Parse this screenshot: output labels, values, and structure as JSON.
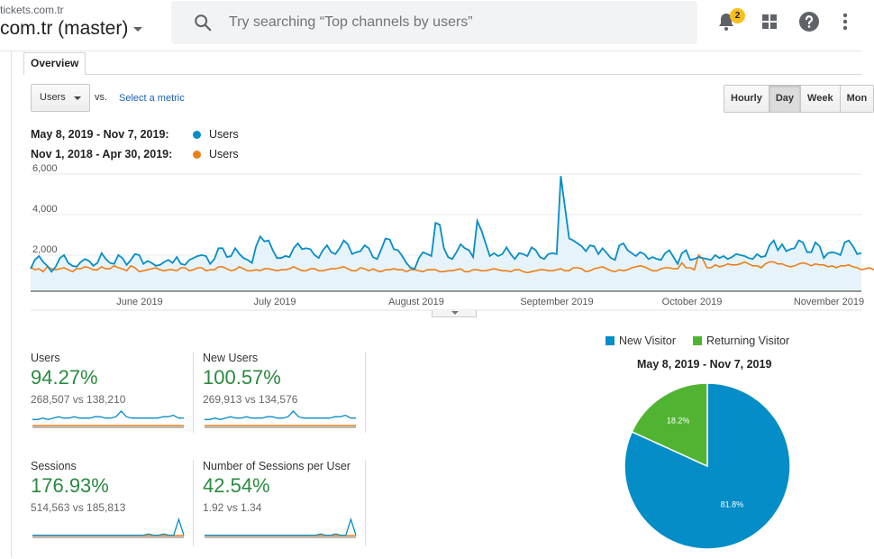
{
  "header": {
    "site_url": "tickets.com.tr",
    "property_name": "com.tr (master)",
    "search_placeholder": "Try searching “Top channels by users”",
    "notification_count": "2",
    "icons": [
      "search-icon",
      "bell-icon",
      "apps-grid-icon",
      "help-icon",
      "more-vert-icon"
    ]
  },
  "tabs": {
    "overview_label": "Overview"
  },
  "controls": {
    "metric_select": "Users",
    "vs_label": "vs.",
    "select_metric_link": "Select a metric",
    "period_buttons": [
      "Hourly",
      "Day",
      "Week",
      "Mon"
    ],
    "active_period": "Day"
  },
  "legend": {
    "current_range": "May 8, 2019 - Nov 7, 2019:",
    "current_series": "Users",
    "previous_range": "Nov 1, 2018 - Apr 30, 2019:",
    "previous_series": "Users"
  },
  "colors": {
    "current": "#058dc7",
    "previous": "#ed7e17",
    "fill": "#e7f3fa",
    "positive": "#2a8a3e",
    "returning": "#50b432"
  },
  "chart_data": [
    {
      "type": "line",
      "ylim": [
        0,
        6000
      ],
      "y_ticks": [
        "6,000",
        "4,000",
        "2,000"
      ],
      "x_labels": [
        "June 2019",
        "July 2019",
        "August 2019",
        "September 2019",
        "October 2019",
        "November 2019"
      ],
      "series": [
        {
          "name": "Users",
          "range": "May 8, 2019 - Nov 7, 2019",
          "values": [
            1150,
            1600,
            1800,
            1500,
            1300,
            1000,
            1250,
            1700,
            1850,
            1450,
            1300,
            1250,
            1500,
            1650,
            1550,
            1300,
            1450,
            1950,
            1650,
            1450,
            1400,
            1850,
            1700,
            1350,
            1600,
            1900,
            1850,
            1400,
            1550,
            1450,
            1300,
            1350,
            1500,
            1600,
            1450,
            1750,
            1400,
            1350,
            1600,
            1700,
            1800,
            1850,
            1800,
            1400,
            1650,
            2200,
            2200,
            1750,
            1800,
            2200,
            1900,
            1700,
            1600,
            1450,
            2300,
            2800,
            2550,
            2600,
            2100,
            1700,
            1700,
            1800,
            1750,
            2200,
            2450,
            2150,
            2200,
            2150,
            1850,
            1700,
            2100,
            2350,
            2000,
            1900,
            2200,
            2600,
            2400,
            1900,
            2000,
            2050,
            2350,
            2200,
            1750,
            1650,
            2150,
            2700,
            2650,
            2150,
            2100,
            1800,
            1450,
            1200,
            1150,
            1700,
            2000,
            1900,
            1800,
            3500,
            3400,
            2200,
            1750,
            1650,
            2000,
            2400,
            2200,
            2100,
            1750,
            3600,
            3100,
            2450,
            1800,
            1950,
            1800,
            1900,
            2250,
            1900,
            1650,
            1950,
            1900,
            1800,
            2250,
            2100,
            1750,
            1650,
            1900,
            1950,
            1900,
            5900,
            4300,
            2700,
            2600,
            2450,
            2300,
            2050,
            2350,
            2300,
            1900,
            2200,
            1950,
            1700,
            1600,
            2350,
            2450,
            2100,
            1950,
            1800,
            2000,
            1900,
            1650,
            1750,
            1650,
            1600,
            1950,
            2100,
            1750,
            1400,
            1950,
            2100,
            1600,
            1650,
            1750,
            1700,
            1650,
            1600,
            1850,
            1700,
            1800,
            1650,
            1750,
            1900,
            1850,
            1800,
            1700,
            1650,
            1900,
            1750,
            1800,
            2350,
            2600,
            2100,
            2400,
            2050,
            2150,
            2200,
            2600,
            2500,
            2000,
            2000,
            2500,
            2300,
            1700,
            1950,
            2000,
            1950,
            1850,
            2500,
            2600,
            2300,
            1900,
            1950
          ]
        },
        {
          "name": "Users",
          "range": "Nov 1, 2018 - Apr 30, 2019",
          "values": [
            1250,
            1100,
            1150,
            1000,
            1250,
            1150,
            1100,
            1150,
            1200,
            1100,
            1000,
            1150,
            1150,
            1250,
            1200,
            1100,
            1100,
            1250,
            1150,
            1150,
            1300,
            1200,
            1150,
            1050,
            1300,
            1200,
            1000,
            1050,
            1100,
            1150,
            1200,
            1100,
            1050,
            1100,
            1100,
            1050,
            1200,
            1200,
            1050,
            1100,
            1200,
            1200,
            1050,
            1100,
            1100,
            1250,
            1250,
            1150,
            1050,
            1100,
            1250,
            1150,
            1050,
            1050,
            1100,
            1050,
            1150,
            1150,
            1100,
            1050,
            1100,
            1100,
            1150,
            1250,
            1150,
            1050,
            1050,
            1150,
            1150,
            1050,
            1050,
            1100,
            1150,
            1150,
            1200,
            1250,
            1150,
            1050,
            1050,
            1200,
            1150,
            1050,
            1150,
            1050,
            1000,
            1100,
            1100,
            1150,
            1100,
            1100,
            1000,
            1100,
            1100,
            1050,
            1000,
            1100,
            1100,
            1100,
            1000,
            1000,
            1050,
            1050,
            1100,
            1150,
            1000,
            1000,
            1100,
            1100,
            1050,
            1050,
            1100,
            1150,
            1100,
            1050,
            1050,
            1000,
            1100,
            1100,
            1000,
            950,
            1000,
            1050,
            1100,
            1100,
            1050,
            1050,
            1100,
            1150,
            1050,
            1050,
            1200,
            1200,
            1150,
            1000,
            1050,
            1150,
            1200,
            1250,
            1150,
            1050,
            1000,
            1100,
            1050,
            1100,
            1200,
            1250,
            1300,
            1250,
            1150,
            1050,
            1050,
            1150,
            1200,
            1200,
            1150,
            1150,
            1450,
            1200,
            1200,
            1100,
            1850,
            1650,
            1200,
            1200,
            1350,
            1250,
            1300,
            1400,
            1350,
            1350,
            1400,
            1500,
            1400,
            1300,
            1300,
            1200,
            1400,
            1500,
            1500,
            1400,
            1400,
            1300,
            1250,
            1300,
            1400,
            1450,
            1400,
            1300,
            1400,
            1350,
            1350,
            1250,
            1300,
            1200,
            1300,
            1300,
            1350,
            1250,
            1200,
            1100,
            1150,
            1200,
            1100,
            1250,
            1250
          ]
        }
      ]
    },
    {
      "type": "pie",
      "title": "May 8, 2019 - Nov 7, 2019",
      "slices": [
        {
          "name": "New Visitor",
          "value": 81.8,
          "label": "81.8%",
          "color": "#058dc7"
        },
        {
          "name": "Returning Visitor",
          "value": 18.2,
          "label": "18.2%",
          "color": "#50b432"
        }
      ]
    }
  ],
  "tiles": [
    {
      "title": "Users",
      "value": "94.27%",
      "compare": "268,507 vs 138,210",
      "spark": [
        5,
        5,
        6,
        5,
        6,
        7,
        6,
        6,
        7,
        6,
        6,
        6,
        7,
        7,
        6,
        6,
        7,
        11,
        7,
        6,
        6,
        6,
        6,
        6,
        6,
        7,
        7,
        8,
        6,
        6
      ]
    },
    {
      "title": "New Users",
      "value": "100.57%",
      "compare": "269,913 vs 134,576",
      "spark": [
        5,
        5,
        6,
        5,
        6,
        7,
        6,
        6,
        7,
        6,
        6,
        6,
        7,
        7,
        6,
        6,
        7,
        11,
        7,
        6,
        6,
        6,
        6,
        6,
        6,
        7,
        7,
        8,
        6,
        6
      ]
    },
    {
      "title": "Sessions",
      "value": "176.93%",
      "compare": "514,563 vs 185,813",
      "spark": [
        1,
        1,
        1,
        1,
        1,
        1,
        1,
        1,
        1,
        1,
        1,
        1,
        1,
        1,
        1,
        1,
        1,
        1,
        1,
        1,
        1,
        1,
        1,
        2,
        1,
        1,
        2,
        1,
        1,
        14,
        1
      ]
    },
    {
      "title": "Number of Sessions per User",
      "value": "42.54%",
      "compare": "1.92 vs 1.34",
      "spark": [
        1,
        1,
        1,
        1,
        1,
        1,
        1,
        1,
        1,
        1,
        1,
        1,
        1,
        1,
        1,
        1,
        1,
        1,
        1,
        1,
        1,
        1,
        1,
        2,
        1,
        1,
        2,
        1,
        1,
        14,
        1
      ]
    }
  ],
  "pie_legend": {
    "new_label": "New Visitor",
    "returning_label": "Returning Visitor"
  }
}
